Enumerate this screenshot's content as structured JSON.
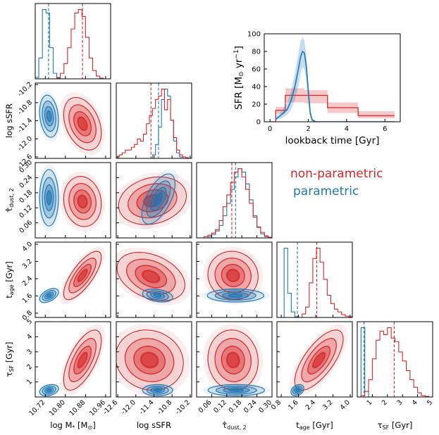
{
  "chart_data": {
    "type": "corner",
    "colors": {
      "nonparametric": "#d62728",
      "parametric": "#1f77b4"
    },
    "legend": {
      "items": [
        "non-parametric",
        "parametric"
      ],
      "placement": "upper-right"
    },
    "params": [
      {
        "name": "logM",
        "label": "log M* [M⊙]",
        "lim": [
          10.68,
          10.98
        ],
        "ticks": [
          10.72,
          10.8,
          10.88,
          10.96
        ],
        "tickLabels": [
          "10.72",
          "10.80",
          "10.88",
          "10.96"
        ],
        "median": {
          "nonparametric": 10.868,
          "parametric": 10.733
        }
      },
      {
        "name": "logsSFR",
        "label": "log sSFR",
        "lim": [
          -12.65,
          -10.15
        ],
        "ticks": [
          -12.6,
          -12.0,
          -11.4,
          -10.8,
          -10.2
        ],
        "tickLabels": [
          "-12.6",
          "-12.0",
          "-11.4",
          "-10.8",
          "-10.2"
        ],
        "median": {
          "nonparametric": -11.5,
          "parametric": -11.25
        }
      },
      {
        "name": "tau_dust",
        "label": "τ̂dust, 2",
        "lim": [
          0.0,
          0.3
        ],
        "ticks": [
          0.06,
          0.12,
          0.18,
          0.24,
          0.3
        ],
        "tickLabels": [
          "0.06",
          "0.12",
          "0.18",
          "0.24",
          "0.30"
        ],
        "median": {
          "nonparametric": 0.14,
          "parametric": 0.155
        }
      },
      {
        "name": "tage",
        "label": "tage [Gyr]",
        "lim": [
          0.6,
          4.1
        ],
        "ticks": [
          0.8,
          1.6,
          2.4,
          3.2,
          4.0
        ],
        "tickLabels": [
          "0.8",
          "1.6",
          "2.4",
          "3.2",
          "4.0"
        ],
        "median": {
          "nonparametric": 2.45,
          "parametric": 1.55
        }
      },
      {
        "name": "tauSF",
        "label": "τSF [Gyr]",
        "lim": [
          0.0,
          5.0
        ],
        "ticks": [
          1,
          2,
          3,
          4,
          5
        ],
        "tickLabels": [
          "1",
          "2",
          "3",
          "4",
          "5"
        ],
        "median": {
          "nonparametric": 2.45,
          "parametric": 0.45
        }
      }
    ],
    "histograms": [
      {
        "param": "logM",
        "nonparametric": [
          0,
          0,
          0,
          0,
          0,
          0,
          0.02,
          0.08,
          0.22,
          0.45,
          0.72,
          0.95,
          1.0,
          0.9,
          0.6,
          0.3,
          0.12,
          0.04,
          0.01,
          0,
          0
        ],
        "parametric": [
          0.02,
          0.3,
          1.0,
          0.95,
          0.45,
          0.08,
          0.01,
          0,
          0,
          0,
          0,
          0,
          0,
          0,
          0,
          0,
          0,
          0,
          0,
          0,
          0
        ]
      },
      {
        "param": "logsSFR",
        "nonparametric": [
          0.02,
          0.05,
          0.08,
          0.12,
          0.12,
          0.16,
          0.2,
          0.28,
          0.25,
          0.35,
          0.5,
          0.62,
          0.72,
          0.85,
          0.9,
          1.0,
          0.7,
          0.85,
          0.55,
          0.3,
          0.12,
          0.05,
          0.02,
          0.01,
          0
        ],
        "parametric": [
          0,
          0,
          0,
          0,
          0,
          0,
          0,
          0,
          0,
          0,
          0,
          0,
          0.05,
          0.2,
          0.45,
          0.85,
          1.0,
          0.9,
          0.55,
          0.25,
          0.08,
          0.02,
          0,
          0,
          0
        ]
      },
      {
        "param": "tau_dust",
        "nonparametric": [
          0,
          0,
          0.02,
          0.04,
          0.07,
          0.12,
          0.25,
          0.45,
          0.62,
          0.8,
          0.95,
          1.0,
          0.88,
          0.7,
          0.5,
          0.3,
          0.16,
          0.08,
          0.03,
          0.01
        ],
        "parametric": [
          0,
          0,
          0,
          0.02,
          0.05,
          0.1,
          0.18,
          0.32,
          0.5,
          0.7,
          0.88,
          1.0,
          0.95,
          0.78,
          0.55,
          0.32,
          0.15,
          0.06,
          0.02,
          0
        ]
      },
      {
        "param": "tage",
        "nonparametric": [
          0,
          0,
          0,
          0,
          0,
          0,
          0,
          0.05,
          0.15,
          0.5,
          0.85,
          1.0,
          0.8,
          0.55,
          0.32,
          0.2,
          0.12,
          0.08,
          0.04,
          0.02,
          0.01
        ],
        "parametric": [
          0,
          0,
          1.0,
          0.35,
          0.08,
          0.01,
          0,
          0,
          0,
          0,
          0,
          0,
          0,
          0,
          0,
          0,
          0,
          0,
          0,
          0,
          0
        ]
      },
      {
        "param": "tauSF",
        "nonparametric": [
          0,
          0.02,
          0.08,
          0.25,
          0.55,
          0.82,
          0.95,
          0.9,
          1.0,
          0.85,
          0.8,
          0.65,
          0.52,
          0.38,
          0.25,
          0.14,
          0.06,
          0.02,
          0.01,
          0
        ],
        "parametric": [
          0,
          1.0,
          0.08,
          0,
          0,
          0,
          0,
          0,
          0,
          0,
          0,
          0,
          0,
          0,
          0,
          0,
          0,
          0,
          0,
          0
        ]
      }
    ],
    "contours": [
      {
        "x": "logM",
        "y": "logsSFR",
        "nonparametric": {
          "mean": [
            10.868,
            -11.5
          ],
          "sd": [
            0.03,
            0.35
          ],
          "rho": -0.35
        },
        "parametric": {
          "mean": [
            10.735,
            -11.25
          ],
          "sd": [
            0.015,
            0.28
          ],
          "rho": -0.2
        }
      },
      {
        "x": "logM",
        "y": "tau_dust",
        "nonparametric": {
          "mean": [
            10.868,
            0.145
          ],
          "sd": [
            0.03,
            0.04
          ],
          "rho": -0.1
        },
        "parametric": {
          "mean": [
            10.735,
            0.16
          ],
          "sd": [
            0.015,
            0.045
          ],
          "rho": 0.0
        }
      },
      {
        "x": "logsSFR",
        "y": "tau_dust",
        "nonparametric": {
          "mean": [
            -11.45,
            0.148
          ],
          "sd": [
            0.45,
            0.038
          ],
          "rho": 0.2
        },
        "parametric": {
          "mean": [
            -11.25,
            0.155
          ],
          "sd": [
            0.22,
            0.04
          ],
          "rho": 0.6
        }
      },
      {
        "x": "logM",
        "y": "tage",
        "nonparametric": {
          "mean": [
            10.868,
            2.55
          ],
          "sd": [
            0.03,
            0.45
          ],
          "rho": 0.75
        },
        "parametric": {
          "mean": [
            10.735,
            1.62
          ],
          "sd": [
            0.015,
            0.13
          ],
          "rho": 0.5
        }
      },
      {
        "x": "logsSFR",
        "y": "tage",
        "nonparametric": {
          "mean": [
            -11.5,
            2.5
          ],
          "sd": [
            0.45,
            0.45
          ],
          "rho": -0.35
        },
        "parametric": {
          "mean": [
            -11.28,
            1.62
          ],
          "sd": [
            0.2,
            0.12
          ],
          "rho": -0.3
        }
      },
      {
        "x": "tau_dust",
        "y": "tage",
        "nonparametric": {
          "mean": [
            0.145,
            2.55
          ],
          "sd": [
            0.04,
            0.45
          ],
          "rho": -0.05
        },
        "parametric": {
          "mean": [
            0.155,
            1.62
          ],
          "sd": [
            0.045,
            0.12
          ],
          "rho": 0.0
        }
      },
      {
        "x": "logM",
        "y": "tauSF",
        "nonparametric": {
          "mean": [
            10.868,
            2.45
          ],
          "sd": [
            0.03,
            0.8
          ],
          "rho": 0.65
        },
        "parametric": {
          "mean": [
            10.735,
            0.45
          ],
          "sd": [
            0.015,
            0.15
          ],
          "rho": 0.3
        }
      },
      {
        "x": "logsSFR",
        "y": "tauSF",
        "nonparametric": {
          "mean": [
            -11.55,
            2.45
          ],
          "sd": [
            0.45,
            0.8
          ],
          "rho": -0.1
        },
        "parametric": {
          "mean": [
            -11.28,
            0.45
          ],
          "sd": [
            0.2,
            0.15
          ],
          "rho": 0.0
        }
      },
      {
        "x": "tau_dust",
        "y": "tauSF",
        "nonparametric": {
          "mean": [
            0.145,
            2.45
          ],
          "sd": [
            0.04,
            0.8
          ],
          "rho": -0.05
        },
        "parametric": {
          "mean": [
            0.158,
            0.45
          ],
          "sd": [
            0.045,
            0.15
          ],
          "rho": 0.0
        }
      },
      {
        "x": "tage",
        "y": "tauSF",
        "nonparametric": {
          "mean": [
            2.55,
            2.45
          ],
          "sd": [
            0.45,
            0.8
          ],
          "rho": 0.7
        },
        "parametric": {
          "mean": [
            1.55,
            0.45
          ],
          "sd": [
            0.12,
            0.15
          ],
          "rho": 0.3
        }
      }
    ],
    "sfh": {
      "type": "line",
      "xlabel": "lookback time [Gyr]",
      "ylabel": "SFR [M⊙ yr⁻¹]",
      "xlim": [
        -0.3,
        6.8
      ],
      "ylim": [
        0,
        100
      ],
      "xticks": [
        0,
        2,
        4,
        6
      ],
      "yticks": [
        0,
        20,
        40,
        60,
        80,
        100
      ],
      "parametric": {
        "x": [
          0.3,
          0.6,
          0.9,
          1.1,
          1.3,
          1.5,
          1.6,
          1.7,
          1.8,
          1.9,
          2.0,
          2.1,
          2.2,
          2.4,
          6.5
        ],
        "y": [
          3,
          8,
          14,
          24,
          40,
          62,
          74,
          80,
          78,
          62,
          35,
          10,
          2,
          0,
          0
        ],
        "upper": [
          5,
          12,
          22,
          35,
          55,
          80,
          92,
          96,
          92,
          75,
          45,
          15,
          4,
          0,
          0
        ],
        "lower": [
          1,
          4,
          8,
          14,
          25,
          42,
          55,
          62,
          60,
          45,
          22,
          5,
          1,
          0,
          0
        ]
      },
      "nonparametric": {
        "steps": [
          {
            "x0": 0.0,
            "x1": 0.3,
            "y": 0,
            "lo": 0,
            "hi": 0
          },
          {
            "x0": 0.3,
            "x1": 0.8,
            "y": 13,
            "lo": 9,
            "hi": 17
          },
          {
            "x0": 0.8,
            "x1": 1.8,
            "y": 30,
            "lo": 22,
            "hi": 38
          },
          {
            "x0": 1.8,
            "x1": 3.0,
            "y": 30,
            "lo": 21,
            "hi": 36
          },
          {
            "x0": 3.0,
            "x1": 4.6,
            "y": 16,
            "lo": 10,
            "hi": 22
          },
          {
            "x0": 4.6,
            "x1": 6.5,
            "y": 7,
            "lo": 4,
            "hi": 12
          }
        ]
      }
    }
  }
}
